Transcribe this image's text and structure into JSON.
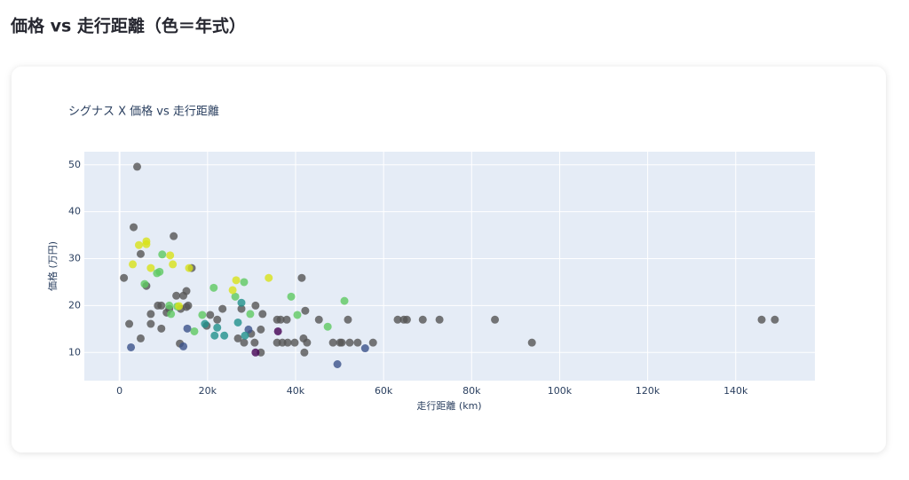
{
  "header": {
    "title": "価格 vs 走行距離（色＝年式）"
  },
  "chart_data": {
    "type": "scatter",
    "title": "シグナス X  価格 vs 走行距離",
    "x_label": "走行距離 (km)",
    "y_label": "価格 (万円)",
    "xlim": [
      -8000,
      158000
    ],
    "ylim": [
      4,
      52.8
    ],
    "xticks": [
      0,
      {
        "value": 20000,
        "label": "20k"
      },
      {
        "value": 40000,
        "label": "40k"
      },
      {
        "value": 60000,
        "label": "60k"
      },
      {
        "value": 80000,
        "label": "80k"
      },
      {
        "value": 100000,
        "label": "100k"
      },
      {
        "value": 120000,
        "label": "120k"
      },
      {
        "value": 140000,
        "label": "140k"
      }
    ],
    "yticks": [
      10,
      20,
      30,
      40,
      50
    ],
    "grid": true,
    "series": [
      {
        "color": "#555555",
        "x": [
          4000,
          3200,
          1000,
          2200,
          4800,
          4800,
          6100,
          7100,
          7100,
          8700,
          9500,
          9500,
          10700,
          12300,
          12900,
          13700,
          13900,
          14500,
          15200,
          15200,
          15600,
          16400,
          19800,
          20600,
          22200,
          23400,
          26900,
          27700,
          28300,
          29900,
          30900,
          30700,
          32100,
          32100,
          32500,
          35800,
          35800,
          36600,
          37000,
          38000,
          38200,
          39800,
          41400,
          41800,
          42200,
          42600,
          42000,
          45300,
          48500,
          50100,
          50500,
          51900,
          52300,
          54100,
          57600,
          63200,
          64600,
          65300,
          68900,
          72700,
          85300,
          93700,
          145900,
          148900,
          11300
        ],
        "values": [
          49.6,
          36.7,
          25.9,
          16.1,
          13,
          31,
          24.2,
          18.2,
          16.1,
          20,
          20,
          15.1,
          18.5,
          34.8,
          22.1,
          11.9,
          19.3,
          22.1,
          23.1,
          19.7,
          20,
          28,
          15.7,
          18,
          17,
          19.3,
          13,
          19.3,
          12.1,
          14,
          20,
          12.1,
          10,
          14.9,
          18.2,
          17,
          12.1,
          17,
          12.1,
          17,
          12.1,
          12.1,
          25.9,
          13,
          18.9,
          12.1,
          10,
          17,
          12.1,
          12.1,
          12.1,
          17,
          12.1,
          12.1,
          12.1,
          17,
          17,
          17,
          17,
          17,
          17,
          12.1,
          17,
          17,
          19.3
        ]
      },
      {
        "color": "#440154",
        "x": [
          36000,
          30900
        ],
        "values": [
          14.5,
          10
        ]
      },
      {
        "color": "#3b528b",
        "x": [
          2600,
          14500,
          15400,
          29300,
          49500,
          55800
        ],
        "values": [
          11.1,
          11.3,
          15.1,
          14.9,
          7.5,
          10.9
        ]
      },
      {
        "color": "#21918c",
        "x": [
          21600,
          23800,
          22200,
          26900,
          27700,
          28500,
          19400
        ],
        "values": [
          13.6,
          13.6,
          15.3,
          16.4,
          20.6,
          13.6,
          16.1
        ]
      },
      {
        "color": "#5ec962",
        "x": [
          5700,
          8500,
          9100,
          9700,
          11300,
          11700,
          21400,
          26300,
          28300,
          29700,
          17000,
          39000,
          40400,
          47300,
          51100,
          18800,
          13100
        ],
        "values": [
          24.6,
          26.9,
          27.2,
          30.9,
          20,
          18.2,
          23.8,
          21.9,
          25,
          18.2,
          14.5,
          21.9,
          18,
          15.5,
          21,
          18,
          19.8
        ]
      },
      {
        "color": "#d8e219",
        "x": [
          3000,
          4400,
          6100,
          6100,
          7100,
          11500,
          12100,
          15800,
          26500,
          33900,
          25700,
          13500
        ],
        "values": [
          28.8,
          32.9,
          33.1,
          33.7,
          28,
          30.7,
          28.8,
          28,
          25.4,
          25.9,
          23.3,
          19.9
        ]
      }
    ]
  }
}
